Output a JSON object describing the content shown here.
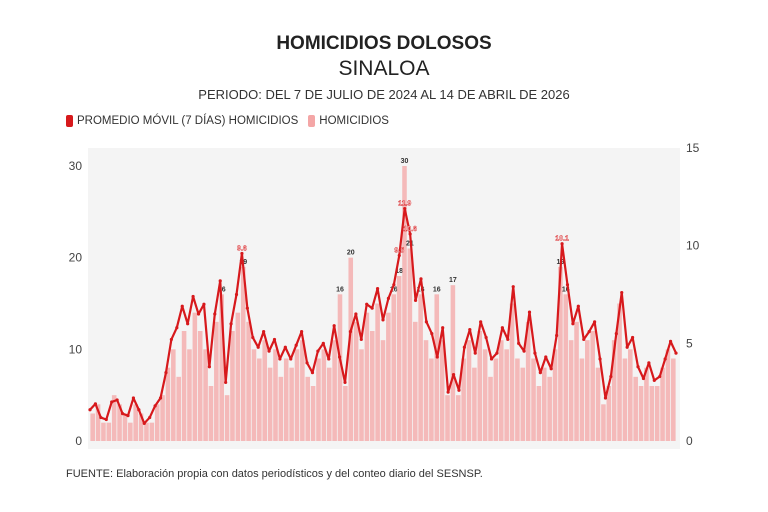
{
  "header": {
    "title": "HOMICIDIOS DOLOSOS",
    "subtitle": "SINALOA",
    "period": "PERIODO: DEL 7 DE JULIO DE 2024 AL 14 DE ABRIL DE 2026"
  },
  "footer": "FUENTE: Elaboración propia con datos periodísticos y del conteo diario del SESNSP.",
  "chart_data": {
    "type": "bar+line",
    "x_start": "2024-07-07",
    "x_end": "2026-04-14",
    "legend_position": "top-left",
    "grid": false,
    "left_axis": {
      "ylim": [
        0,
        30
      ],
      "ticks": [
        "0",
        "10",
        "20",
        "30"
      ]
    },
    "right_axis": {
      "ylim": [
        0,
        15
      ],
      "ticks": [
        "0",
        "5",
        "10",
        "15"
      ]
    },
    "series": [
      {
        "name": "PROMEDIO MÓVIL (7 DÍAS) HOMICIDIOS",
        "type": "line",
        "axis": "right",
        "color": "#d7191c",
        "values": [
          1.6,
          1.9,
          1.2,
          1.1,
          2.0,
          2.1,
          1.4,
          1.3,
          2.2,
          1.6,
          0.9,
          1.2,
          1.8,
          2.2,
          3.5,
          5.2,
          5.8,
          6.9,
          6.0,
          7.4,
          6.5,
          7.0,
          3.8,
          6.5,
          8.2,
          3.0,
          6.0,
          7.5,
          9.6,
          6.8,
          5.3,
          4.8,
          5.6,
          4.6,
          5.2,
          4.2,
          4.8,
          4.2,
          4.9,
          5.6,
          4.0,
          3.5,
          4.6,
          5.0,
          4.2,
          5.9,
          4.3,
          3.0,
          5.6,
          6.5,
          5.2,
          7.0,
          6.8,
          7.8,
          6.2,
          7.3,
          8.0,
          9.5,
          11.9,
          10.6,
          7.2,
          8.3,
          6.1,
          5.5,
          4.3,
          5.8,
          2.5,
          3.4,
          2.6,
          4.8,
          5.7,
          4.5,
          6.1,
          5.3,
          4.2,
          4.5,
          5.8,
          5.2,
          7.9,
          5.0,
          4.6,
          6.6,
          4.5,
          3.5,
          4.3,
          3.7,
          5.4,
          10.1,
          8.0,
          6.0,
          6.9,
          5.2,
          5.6,
          6.1,
          4.2,
          2.2,
          3.3,
          5.5,
          7.6,
          4.8,
          5.3,
          3.8,
          3.2,
          4.0,
          3.1,
          3.3,
          4.2,
          5.1,
          4.5
        ]
      },
      {
        "name": "HOMICIDIOS",
        "type": "bar",
        "axis": "left",
        "color": "#f4a6a6",
        "values": [
          3,
          4,
          2,
          2,
          5,
          4,
          3,
          2,
          4,
          3,
          2,
          2,
          4,
          5,
          8,
          10,
          7,
          12,
          10,
          14,
          12,
          10,
          6,
          13,
          16,
          5,
          12,
          14,
          19,
          13,
          10,
          9,
          11,
          8,
          10,
          7,
          9,
          8,
          10,
          11,
          7,
          6,
          9,
          10,
          8,
          11,
          16,
          6,
          20,
          13,
          10,
          14,
          12,
          15,
          11,
          14,
          16,
          18,
          30,
          21,
          13,
          16,
          11,
          9,
          16,
          11,
          5,
          17,
          5,
          9,
          11,
          8,
          12,
          10,
          7,
          9,
          11,
          10,
          15,
          9,
          8,
          13,
          9,
          6,
          8,
          7,
          10,
          19,
          16,
          11,
          13,
          9,
          11,
          12,
          8,
          4,
          6,
          11,
          15,
          9,
          10,
          7,
          6,
          8,
          6,
          6,
          8,
          10,
          9
        ]
      }
    ]
  }
}
